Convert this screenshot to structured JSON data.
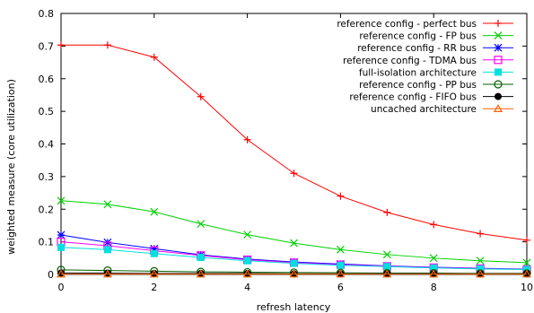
{
  "chart_data": {
    "type": "line",
    "xlabel": "refresh latency",
    "ylabel": "weighted measure (core utilization)",
    "xlim": [
      0,
      10
    ],
    "ylim": [
      0,
      0.8
    ],
    "xticks": [
      "0",
      "2",
      "4",
      "6",
      "8",
      "10"
    ],
    "yticks": [
      "0",
      "0.1",
      "0.2",
      "0.3",
      "0.4",
      "0.5",
      "0.6",
      "0.7",
      "0.8"
    ],
    "x": [
      0,
      1,
      2,
      3,
      4,
      5,
      6,
      7,
      8,
      9,
      10
    ],
    "grid": false,
    "legend": "top-right",
    "series": [
      {
        "name": "reference config - perfect bus",
        "color": "#ff0000",
        "marker": "plus",
        "values": [
          0.703,
          0.703,
          0.666,
          0.545,
          0.413,
          0.31,
          0.24,
          0.19,
          0.153,
          0.125,
          0.105
        ]
      },
      {
        "name": "reference config - FP bus",
        "color": "#00d000",
        "marker": "cross",
        "values": [
          0.226,
          0.215,
          0.192,
          0.155,
          0.122,
          0.096,
          0.076,
          0.061,
          0.05,
          0.042,
          0.036
        ]
      },
      {
        "name": "reference config - RR bus",
        "color": "#0000ff",
        "marker": "star",
        "values": [
          0.121,
          0.098,
          0.079,
          0.06,
          0.047,
          0.038,
          0.032,
          0.026,
          0.022,
          0.019,
          0.016
        ]
      },
      {
        "name": "reference config - TDMA bus",
        "color": "#ff00ff",
        "marker": "square-open",
        "values": [
          0.1,
          0.088,
          0.073,
          0.058,
          0.045,
          0.036,
          0.03,
          0.025,
          0.021,
          0.018,
          0.015
        ]
      },
      {
        "name": "full-isolation architecture",
        "color": "#00e0e0",
        "marker": "square-filled",
        "values": [
          0.083,
          0.076,
          0.064,
          0.052,
          0.042,
          0.034,
          0.028,
          0.024,
          0.02,
          0.017,
          0.015
        ]
      },
      {
        "name": "reference config - PP bus",
        "color": "#006000",
        "marker": "circle-open",
        "values": [
          0.014,
          0.012,
          0.01,
          0.008,
          0.007,
          0.006,
          0.005,
          0.004,
          0.004,
          0.003,
          0.003
        ]
      },
      {
        "name": "reference config - FIFO bus",
        "color": "#000000",
        "marker": "circle-filled",
        "values": [
          0.004,
          0.004,
          0.003,
          0.003,
          0.003,
          0.002,
          0.002,
          0.002,
          0.002,
          0.002,
          0.002
        ]
      },
      {
        "name": "uncached architecture",
        "color": "#ff6000",
        "marker": "triangle-open",
        "values": [
          0.001,
          0.001,
          0.001,
          0.001,
          0.001,
          0.001,
          0.001,
          0.001,
          0.001,
          0.001,
          0.001
        ]
      }
    ]
  }
}
